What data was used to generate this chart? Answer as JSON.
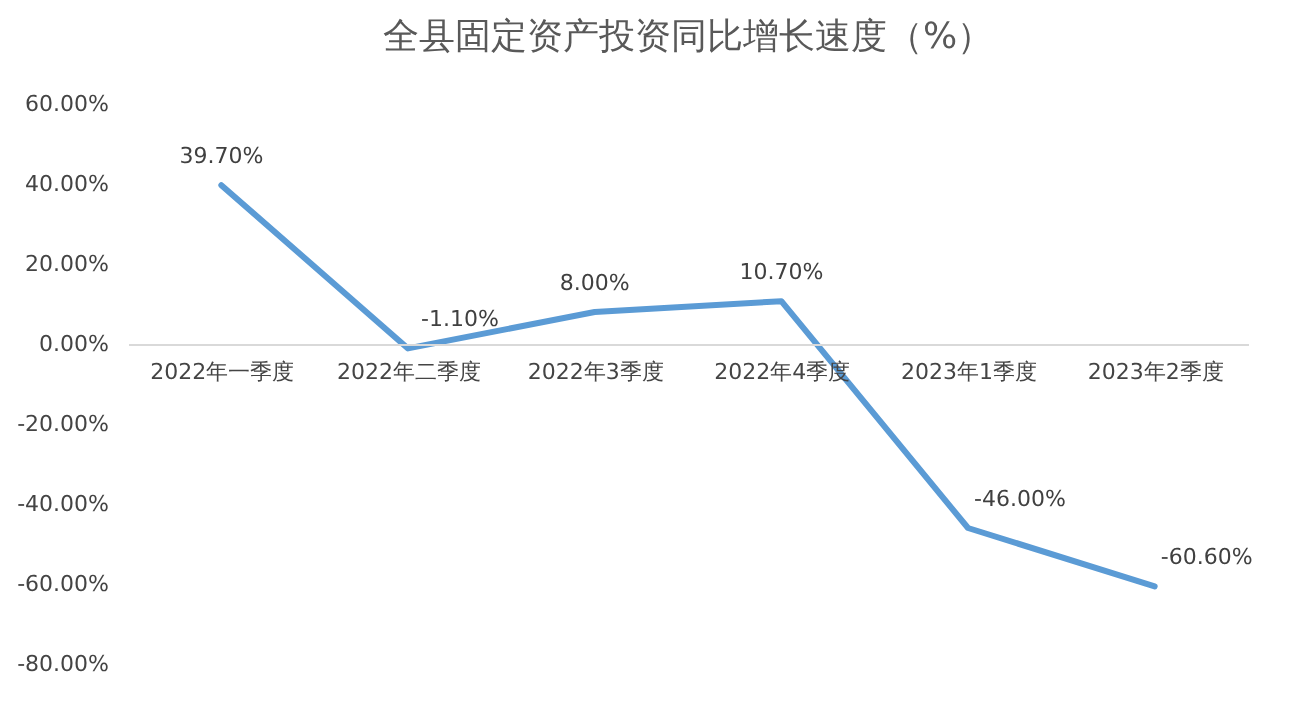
{
  "chart_data": {
    "type": "line",
    "title": "全县固定资产投资同比增长速度（%）",
    "categories": [
      "2022年一季度",
      "2022年二季度",
      "2022年3季度",
      "2022年4季度",
      "2023年1季度",
      "2023年2季度"
    ],
    "series": [
      {
        "color": "#5b9bd5",
        "values": [
          39.7,
          -1.1,
          8.0,
          10.7,
          -46.0,
          -60.6
        ],
        "value_labels": [
          "39.70%",
          "-1.10%",
          "8.00%",
          "10.70%",
          "-46.00%",
          "-60.60%"
        ]
      }
    ],
    "ylim": [
      -80,
      60
    ],
    "yticks": [
      {
        "value": -80,
        "label": "-80.00%"
      },
      {
        "value": -60,
        "label": "-60.00%"
      },
      {
        "value": -40,
        "label": "-40.00%"
      },
      {
        "value": -20,
        "label": "-20.00%"
      },
      {
        "value": 0,
        "label": "0.00%"
      },
      {
        "value": 20,
        "label": "20.00%"
      },
      {
        "value": 40,
        "label": "40.00%"
      },
      {
        "value": 60,
        "label": "60.00%"
      }
    ],
    "grid": false,
    "legend": false,
    "marker": "none",
    "line_style": "solid"
  }
}
